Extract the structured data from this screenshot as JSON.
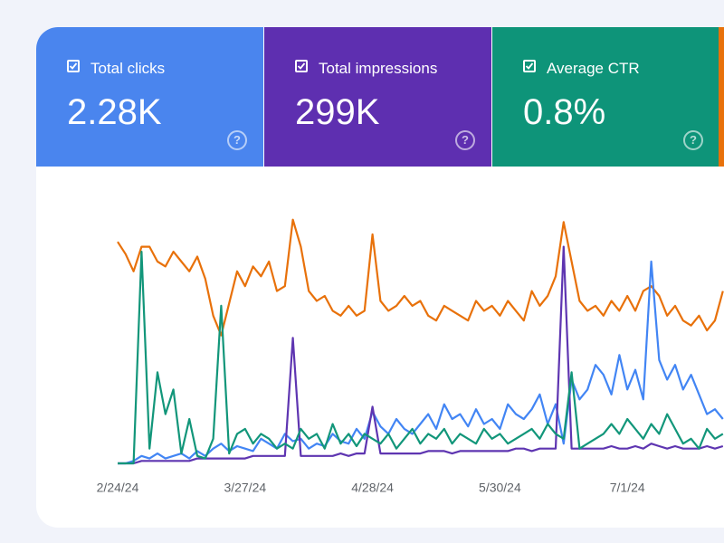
{
  "metrics": [
    {
      "label": "Total clicks",
      "value": "2.28K",
      "color": "#4a85ee"
    },
    {
      "label": "Total impressions",
      "value": "299K",
      "color": "#5e2fb0"
    },
    {
      "label": "Average CTR",
      "value": "0.8%",
      "color": "#0e9479"
    }
  ],
  "chart_data": {
    "type": "line",
    "categories": [
      "2/24/24",
      null,
      null,
      null,
      null,
      null,
      null,
      null,
      null,
      null,
      null,
      null,
      null,
      null,
      null,
      null,
      "3/27/24",
      null,
      null,
      null,
      null,
      null,
      null,
      null,
      null,
      null,
      null,
      null,
      null,
      null,
      null,
      null,
      "4/28/24",
      null,
      null,
      null,
      null,
      null,
      null,
      null,
      null,
      null,
      null,
      null,
      null,
      null,
      null,
      null,
      "5/30/24",
      null,
      null,
      null,
      null,
      null,
      null,
      null,
      null,
      null,
      null,
      null,
      null,
      null,
      null,
      null,
      "7/1/24",
      null,
      null,
      null,
      null,
      null,
      null,
      null,
      null,
      null,
      null,
      null,
      null
    ],
    "ylim": [
      0,
      100
    ],
    "series": [
      {
        "color": "#e8710a",
        "values": [
          90,
          85,
          78,
          88,
          88,
          82,
          80,
          86,
          82,
          78,
          84,
          75,
          60,
          52,
          65,
          78,
          72,
          80,
          76,
          82,
          70,
          72,
          99,
          88,
          70,
          66,
          68,
          62,
          60,
          64,
          60,
          62,
          93,
          66,
          62,
          64,
          68,
          64,
          66,
          60,
          58,
          64,
          62,
          60,
          58,
          66,
          62,
          64,
          60,
          66,
          62,
          58,
          70,
          64,
          68,
          76,
          98,
          82,
          66,
          62,
          64,
          60,
          66,
          62,
          68,
          62,
          70,
          72,
          68,
          60,
          64,
          58,
          56,
          60,
          54,
          58,
          70
        ]
      },
      {
        "color": "#4285f4",
        "values": [
          0,
          0,
          1,
          3,
          2,
          4,
          2,
          3,
          4,
          2,
          5,
          3,
          6,
          8,
          5,
          7,
          6,
          5,
          10,
          8,
          6,
          12,
          9,
          10,
          6,
          8,
          7,
          12,
          9,
          8,
          14,
          10,
          21,
          15,
          12,
          18,
          14,
          12,
          16,
          20,
          14,
          24,
          18,
          20,
          15,
          22,
          16,
          18,
          14,
          24,
          20,
          18,
          22,
          28,
          16,
          24,
          8,
          34,
          26,
          30,
          40,
          36,
          28,
          44,
          30,
          38,
          26,
          82,
          42,
          34,
          40,
          30,
          36,
          28,
          20,
          22,
          18
        ]
      },
      {
        "color": "#5e35b1",
        "values": [
          0,
          0,
          0,
          1,
          1,
          1,
          1,
          1,
          1,
          1,
          2,
          2,
          2,
          2,
          2,
          2,
          2,
          3,
          3,
          3,
          3,
          3,
          51,
          3,
          3,
          3,
          3,
          3,
          4,
          3,
          4,
          4,
          23,
          4,
          4,
          4,
          4,
          4,
          4,
          5,
          5,
          5,
          4,
          5,
          5,
          5,
          5,
          5,
          5,
          5,
          6,
          6,
          5,
          6,
          6,
          6,
          88,
          6,
          6,
          6,
          6,
          6,
          7,
          6,
          6,
          7,
          6,
          8,
          7,
          6,
          7,
          6,
          6,
          6,
          7,
          6,
          7
        ]
      },
      {
        "color": "#12967a",
        "values": [
          0,
          0,
          0,
          86,
          6,
          37,
          20,
          30,
          4,
          18,
          3,
          2,
          10,
          64,
          4,
          12,
          14,
          8,
          12,
          10,
          6,
          8,
          6,
          14,
          10,
          12,
          6,
          16,
          8,
          12,
          7,
          12,
          10,
          8,
          12,
          6,
          10,
          14,
          8,
          12,
          10,
          14,
          8,
          12,
          10,
          8,
          14,
          10,
          12,
          8,
          10,
          12,
          14,
          10,
          16,
          12,
          10,
          37,
          6,
          8,
          10,
          12,
          16,
          12,
          18,
          14,
          10,
          16,
          12,
          20,
          14,
          8,
          10,
          6,
          14,
          10,
          12
        ]
      }
    ]
  }
}
